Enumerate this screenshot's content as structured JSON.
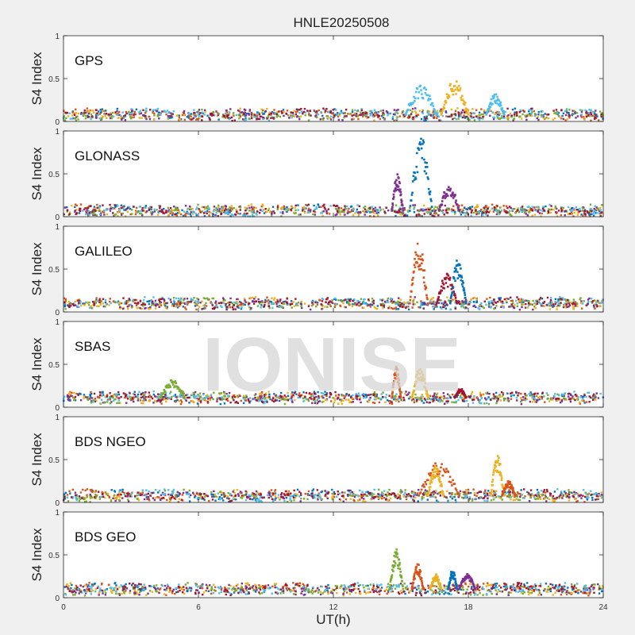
{
  "figure": {
    "title": "HNLE20250508",
    "watermark": "IONISE",
    "background": "#f0f0f0",
    "axes_background": "#ffffff"
  },
  "chart_data": [
    {
      "type": "scatter",
      "panel_label": "GPS",
      "ylabel": "S4 Index",
      "xlabel": "",
      "xlim": [
        0,
        24
      ],
      "ylim": [
        0,
        1
      ],
      "yticks": [
        0,
        0.5,
        1
      ],
      "ytick_labels": [
        "0",
        "0.5",
        "1"
      ],
      "grid": false,
      "baseline": 0.08,
      "bursts": [
        {
          "x_start": 15.2,
          "x_end": 16.6,
          "peak": 0.42,
          "color": "#4DBEEE"
        },
        {
          "x_start": 16.8,
          "x_end": 18.0,
          "peak": 0.5,
          "color": "#EDB120"
        },
        {
          "x_start": 18.8,
          "x_end": 19.6,
          "peak": 0.32,
          "color": "#4DBEEE"
        }
      ]
    },
    {
      "type": "scatter",
      "panel_label": "GLONASS",
      "ylabel": "S4 Index",
      "xlabel": "",
      "xlim": [
        0,
        24
      ],
      "ylim": [
        0,
        1
      ],
      "yticks": [
        0,
        0.5,
        1
      ],
      "ytick_labels": [
        "0",
        "0.5",
        "1"
      ],
      "grid": false,
      "baseline": 0.07,
      "bursts": [
        {
          "x_start": 14.6,
          "x_end": 15.1,
          "peak": 0.5,
          "color": "#7E2F8E"
        },
        {
          "x_start": 15.4,
          "x_end": 16.4,
          "peak": 0.93,
          "color": "#0072BD"
        },
        {
          "x_start": 16.7,
          "x_end": 17.6,
          "peak": 0.38,
          "color": "#7E2F8E"
        }
      ]
    },
    {
      "type": "scatter",
      "panel_label": "GALILEO",
      "ylabel": "S4 Index",
      "xlabel": "",
      "xlim": [
        0,
        24
      ],
      "ylim": [
        0,
        1
      ],
      "yticks": [
        0,
        0.5,
        1
      ],
      "ytick_labels": [
        "0",
        "0.5",
        "1"
      ],
      "grid": false,
      "baseline": 0.1,
      "bursts": [
        {
          "x_start": 15.4,
          "x_end": 16.2,
          "peak": 0.82,
          "color": "#D95319"
        },
        {
          "x_start": 16.6,
          "x_end": 17.5,
          "peak": 0.45,
          "color": "#A2142F"
        },
        {
          "x_start": 17.2,
          "x_end": 17.9,
          "peak": 0.62,
          "color": "#0072BD"
        }
      ]
    },
    {
      "type": "scatter",
      "panel_label": "SBAS",
      "ylabel": "S4 Index",
      "xlabel": "",
      "xlim": [
        0,
        24
      ],
      "ylim": [
        0,
        1
      ],
      "yticks": [
        0,
        0.5,
        1
      ],
      "ytick_labels": [
        "0",
        "0.5",
        "1"
      ],
      "grid": false,
      "baseline": 0.11,
      "bursts": [
        {
          "x_start": 4.3,
          "x_end": 5.4,
          "peak": 0.32,
          "color": "#77AC30"
        },
        {
          "x_start": 14.6,
          "x_end": 15.0,
          "peak": 0.48,
          "color": "#D95319"
        },
        {
          "x_start": 15.5,
          "x_end": 16.2,
          "peak": 0.47,
          "color": "#EDB120"
        },
        {
          "x_start": 17.4,
          "x_end": 17.9,
          "peak": 0.22,
          "color": "#A2142F"
        }
      ]
    },
    {
      "type": "scatter",
      "panel_label": "BDS NGEO",
      "ylabel": "S4 Index",
      "xlabel": "",
      "xlim": [
        0,
        24
      ],
      "ylim": [
        0,
        1
      ],
      "yticks": [
        0,
        0.5,
        1
      ],
      "ytick_labels": [
        "0",
        "0.5",
        "1"
      ],
      "grid": false,
      "baseline": 0.08,
      "bursts": [
        {
          "x_start": 15.8,
          "x_end": 17.6,
          "peak": 0.48,
          "color": "#D95319"
        },
        {
          "x_start": 16.2,
          "x_end": 16.9,
          "peak": 0.42,
          "color": "#EDB120"
        },
        {
          "x_start": 19.0,
          "x_end": 19.6,
          "peak": 0.55,
          "color": "#EDB120"
        },
        {
          "x_start": 19.5,
          "x_end": 20.1,
          "peak": 0.25,
          "color": "#D95319"
        }
      ]
    },
    {
      "type": "scatter",
      "panel_label": "BDS GEO",
      "ylabel": "S4 Index",
      "xlabel": "UT(h)",
      "xlim": [
        0,
        24
      ],
      "ylim": [
        0,
        1
      ],
      "yticks": [
        0,
        0.5,
        1
      ],
      "ytick_labels": [
        "0",
        "0.5",
        "1"
      ],
      "xticks": [
        0,
        6,
        12,
        18,
        24
      ],
      "xtick_labels": [
        "0",
        "6",
        "12",
        "18",
        "24"
      ],
      "grid": false,
      "baseline": 0.1,
      "bursts": [
        {
          "x_start": 14.5,
          "x_end": 15.1,
          "peak": 0.58,
          "color": "#77AC30"
        },
        {
          "x_start": 15.5,
          "x_end": 16.0,
          "peak": 0.4,
          "color": "#D95319"
        },
        {
          "x_start": 16.3,
          "x_end": 16.8,
          "peak": 0.28,
          "color": "#EDB120"
        },
        {
          "x_start": 17.1,
          "x_end": 17.5,
          "peak": 0.33,
          "color": "#0072BD"
        },
        {
          "x_start": 17.6,
          "x_end": 18.3,
          "peak": 0.3,
          "color": "#7E2F8E"
        }
      ]
    }
  ],
  "series_colors": [
    "#0072BD",
    "#D95319",
    "#EDB120",
    "#7E2F8E",
    "#77AC30",
    "#4DBEEE",
    "#A2142F"
  ]
}
